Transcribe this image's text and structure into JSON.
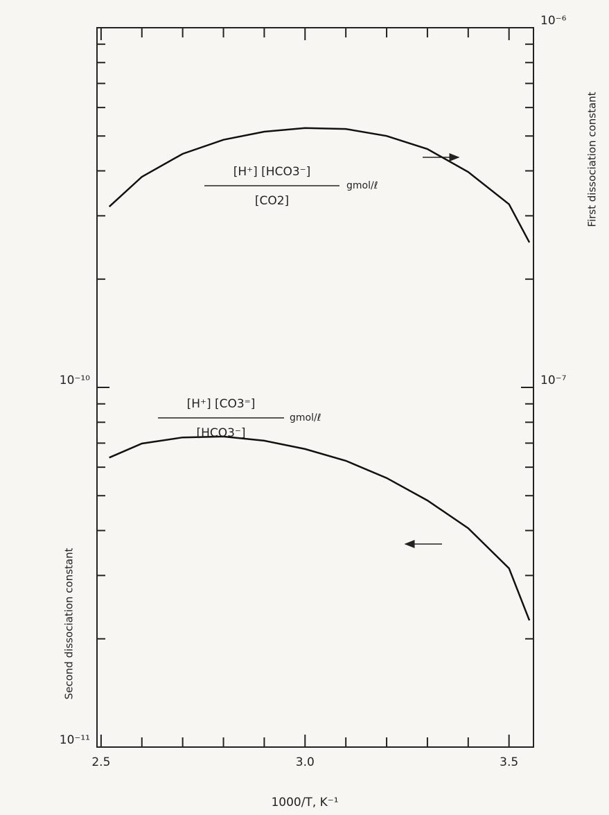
{
  "chart_data": {
    "type": "line",
    "x_label": "1000/T, K⁻¹",
    "y_label": "Second dissociation constant",
    "y2_label": "First dissociation constant",
    "x": [
      2.52,
      2.6,
      2.7,
      2.8,
      2.9,
      3.0,
      3.1,
      3.2,
      3.3,
      3.4,
      3.5,
      3.55
    ],
    "series": [
      {
        "axis": "y2",
        "color": "#111111",
        "values": [
          3.18e-07,
          3.85e-07,
          4.46e-07,
          4.88e-07,
          5.14e-07,
          5.26e-07,
          5.23e-07,
          5e-07,
          4.6e-07,
          3.97e-07,
          3.23e-07,
          2.53e-07
        ]
      },
      {
        "axis": "y",
        "color": "#111111",
        "values": [
          6.38e-11,
          6.98e-11,
          7.26e-11,
          7.3e-11,
          7.11e-11,
          6.74e-11,
          6.25e-11,
          5.6e-11,
          4.85e-11,
          4.06e-11,
          3.14e-11,
          2.25e-11
        ]
      }
    ],
    "annotations": [
      {
        "numerator": "[H⁺] [HCO3⁻]",
        "denominator": "[CO2]",
        "unit": "gmol/ℓ"
      },
      {
        "numerator": "[H⁺] [CO3⁼]",
        "denominator": "[HCO3⁻]",
        "unit": "gmol/ℓ"
      }
    ],
    "xlim": [
      2.49,
      3.56
    ],
    "xticks": [
      2.5,
      {
        "value": 3,
        "label": "3.0"
      },
      3.5
    ],
    "xminorticks": [
      2.6,
      2.7,
      2.8,
      2.9,
      3.1,
      3.2,
      3.3,
      3.4
    ],
    "ylim": [
      1e-11,
      1e-09
    ],
    "yticks": [
      {
        "value": 1e-11,
        "label": "10⁻¹¹"
      },
      {
        "value": 1e-10,
        "label": "10⁻¹⁰"
      }
    ],
    "yminorticks": [
      2e-11,
      3e-11,
      4e-11,
      5e-11,
      6e-11,
      7e-11,
      8e-11,
      9e-11,
      2e-10,
      3e-10,
      4e-10,
      5e-10,
      6e-10,
      7e-10,
      8e-10,
      9e-10
    ],
    "y2lim": [
      1e-08,
      1e-06
    ],
    "y2ticks": [
      {
        "value": 1e-07,
        "label": "10⁻⁷"
      },
      {
        "value": 1e-06,
        "label": "10⁻⁶"
      }
    ],
    "y2minorticks": [
      2e-08,
      3e-08,
      4e-08,
      5e-08,
      6e-08,
      7e-08,
      8e-08,
      9e-08,
      2e-07,
      3e-07,
      4e-07,
      5e-07,
      6e-07,
      7e-07,
      8e-07,
      9e-07
    ],
    "log_scale": true,
    "grid": false
  }
}
